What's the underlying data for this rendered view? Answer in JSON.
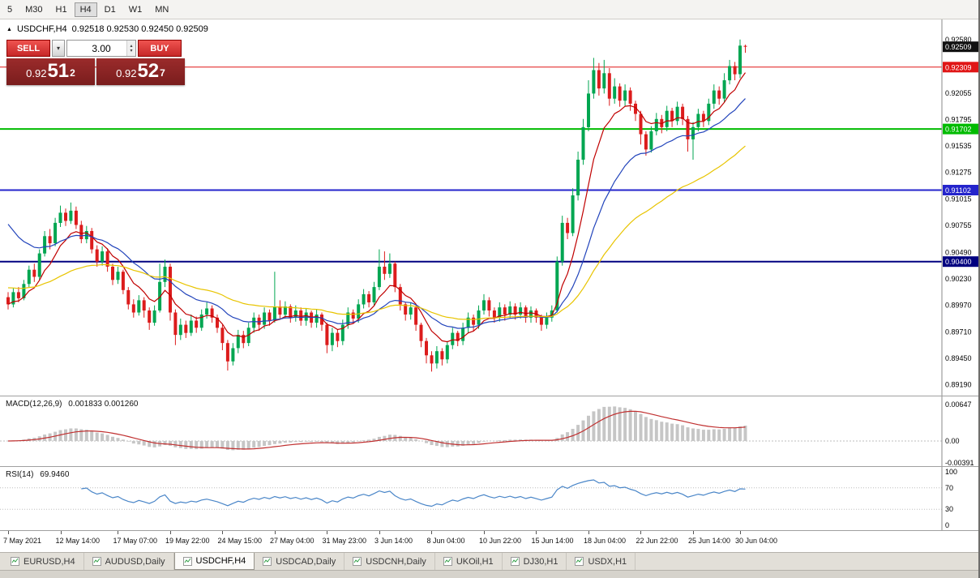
{
  "toolbar": {
    "timeframes": [
      {
        "label": "5",
        "active": false
      },
      {
        "label": "M30",
        "active": false
      },
      {
        "label": "H1",
        "active": false
      },
      {
        "label": "H4",
        "active": true
      },
      {
        "label": "D1",
        "active": false
      },
      {
        "label": "W1",
        "active": false
      },
      {
        "label": "MN",
        "active": false
      }
    ]
  },
  "chart_header": {
    "symbol_period": "USDCHF,H4",
    "ohlc": "0.92518 0.92530 0.92450 0.92509"
  },
  "trade_panel": {
    "sell_label": "SELL",
    "buy_label": "BUY",
    "volume": "3.00",
    "sell_price_big": "0.92",
    "sell_price_mid": "51",
    "sell_price_sup": "2",
    "buy_price_big": "0.92",
    "buy_price_mid": "52",
    "buy_price_sup": "7"
  },
  "colors": {
    "bull": "#00a651",
    "bear": "#dc1c1c",
    "macd_hist": "#c6c6c6",
    "macd_signal": "#c03030",
    "rsi": "#4a86c8"
  },
  "chart_data": {
    "type": "candlestick",
    "symbol": "USDCHF",
    "period": "H4",
    "price_axis": {
      "min": 0.891,
      "max": 0.9265,
      "ticks": [
        0.9258,
        0.92055,
        0.91795,
        0.91535,
        0.91275,
        0.91015,
        0.90755,
        0.9049,
        0.9023,
        0.8997,
        0.8971,
        0.8945,
        0.8919
      ]
    },
    "current_price_badge": {
      "price": 0.92509,
      "label": "0.92509",
      "bg": "#111111"
    },
    "hlines": [
      {
        "price": 0.92309,
        "badge": "0.92309",
        "color": "#e01616",
        "width": 1
      },
      {
        "price": 0.91702,
        "badge": "0.91702",
        "color": "#00bb00",
        "width": 2
      },
      {
        "price": 0.91102,
        "badge": "0.91102",
        "color": "#2424cc",
        "width": 2
      },
      {
        "price": 0.904,
        "badge": "0.90400",
        "color": "#000080",
        "width": 2
      }
    ],
    "moving_averages": [
      {
        "period": 8,
        "color": "#c00000",
        "seed": null
      },
      {
        "period": 20,
        "color": "#2244bb",
        "seed": 0.9085
      },
      {
        "period": 45,
        "color": "#e8c400",
        "seed": 0.9015
      }
    ],
    "macd": {
      "label": "MACD(12,26,9)",
      "values_label": "0.001833 0.001260",
      "fast": 12,
      "slow": 26,
      "signal": 9,
      "axis": [
        0.00647,
        0,
        -0.00391
      ]
    },
    "rsi": {
      "label": "RSI(14)",
      "value_label": "69.9460",
      "period": 14,
      "levels": [
        100,
        70,
        30,
        0
      ]
    },
    "time_labels": [
      {
        "i": 0,
        "label": "7 May 2021"
      },
      {
        "i": 10,
        "label": "12 May 14:00"
      },
      {
        "i": 21,
        "label": "17 May 07:00"
      },
      {
        "i": 31,
        "label": "19 May 22:00"
      },
      {
        "i": 41,
        "label": "24 May 15:00"
      },
      {
        "i": 51,
        "label": "27 May 04:00"
      },
      {
        "i": 61,
        "label": "31 May 23:00"
      },
      {
        "i": 71,
        "label": "3 Jun 14:00"
      },
      {
        "i": 81,
        "label": "8 Jun 04:00"
      },
      {
        "i": 91,
        "label": "10 Jun 22:00"
      },
      {
        "i": 101,
        "label": "15 Jun 14:00"
      },
      {
        "i": 111,
        "label": "18 Jun 04:00"
      },
      {
        "i": 121,
        "label": "22 Jun 22:00"
      },
      {
        "i": 131,
        "label": "25 Jun 14:00"
      },
      {
        "i": 140,
        "label": "30 Jun 04:00"
      }
    ],
    "candles": [
      [
        0.9005,
        0.901,
        0.8993,
        0.8998
      ],
      [
        0.8998,
        0.9014,
        0.8995,
        0.901
      ],
      [
        0.901,
        0.9015,
        0.9,
        0.9004
      ],
      [
        0.9004,
        0.9022,
        0.9002,
        0.9018
      ],
      [
        0.9018,
        0.9036,
        0.9015,
        0.9032
      ],
      [
        0.9032,
        0.9038,
        0.902,
        0.9025
      ],
      [
        0.9025,
        0.9052,
        0.9022,
        0.9048
      ],
      [
        0.9048,
        0.907,
        0.9045,
        0.9065
      ],
      [
        0.9065,
        0.9072,
        0.9052,
        0.9058
      ],
      [
        0.9058,
        0.9083,
        0.9055,
        0.9078
      ],
      [
        0.9078,
        0.9095,
        0.9074,
        0.9088
      ],
      [
        0.9088,
        0.9092,
        0.9075,
        0.908
      ],
      [
        0.908,
        0.9098,
        0.9077,
        0.909
      ],
      [
        0.909,
        0.9094,
        0.9072,
        0.9076
      ],
      [
        0.9076,
        0.908,
        0.9058,
        0.9062
      ],
      [
        0.9062,
        0.9075,
        0.9058,
        0.907
      ],
      [
        0.907,
        0.9073,
        0.9048,
        0.9052
      ],
      [
        0.9052,
        0.9056,
        0.9035,
        0.904
      ],
      [
        0.904,
        0.9055,
        0.9036,
        0.905
      ],
      [
        0.905,
        0.9053,
        0.903,
        0.9035
      ],
      [
        0.9035,
        0.9038,
        0.9017,
        0.9022
      ],
      [
        0.9022,
        0.9035,
        0.9018,
        0.903
      ],
      [
        0.903,
        0.9032,
        0.9008,
        0.9012
      ],
      [
        0.9012,
        0.9015,
        0.8993,
        0.8998
      ],
      [
        0.8998,
        0.9003,
        0.8985,
        0.899
      ],
      [
        0.899,
        0.9007,
        0.8987,
        0.9002
      ],
      [
        0.9002,
        0.9005,
        0.8985,
        0.8992
      ],
      [
        0.8992,
        0.8995,
        0.8973,
        0.898
      ],
      [
        0.898,
        0.8997,
        0.8977,
        0.8992
      ],
      [
        0.8992,
        0.9038,
        0.899,
        0.902
      ],
      [
        0.902,
        0.9042,
        0.9015,
        0.9035
      ],
      [
        0.9035,
        0.9038,
        0.8982,
        0.899
      ],
      [
        0.899,
        0.8993,
        0.8958,
        0.8968
      ],
      [
        0.8968,
        0.8984,
        0.8963,
        0.8978
      ],
      [
        0.8978,
        0.8982,
        0.8965,
        0.897
      ],
      [
        0.897,
        0.8988,
        0.8967,
        0.8982
      ],
      [
        0.8982,
        0.8986,
        0.897,
        0.8975
      ],
      [
        0.8975,
        0.8993,
        0.8972,
        0.8988
      ],
      [
        0.8988,
        0.9,
        0.8984,
        0.8994
      ],
      [
        0.8994,
        0.8997,
        0.898,
        0.8985
      ],
      [
        0.8985,
        0.8988,
        0.897,
        0.8975
      ],
      [
        0.8975,
        0.8978,
        0.8953,
        0.896
      ],
      [
        0.896,
        0.8963,
        0.8933,
        0.8942
      ],
      [
        0.8942,
        0.896,
        0.8938,
        0.8955
      ],
      [
        0.8955,
        0.8973,
        0.895,
        0.8968
      ],
      [
        0.8968,
        0.8972,
        0.8955,
        0.896
      ],
      [
        0.896,
        0.898,
        0.8957,
        0.8975
      ],
      [
        0.8975,
        0.899,
        0.897,
        0.8985
      ],
      [
        0.8985,
        0.8988,
        0.8972,
        0.8978
      ],
      [
        0.8978,
        0.8995,
        0.8974,
        0.899
      ],
      [
        0.899,
        0.8993,
        0.8977,
        0.8982
      ],
      [
        0.8982,
        0.903,
        0.898,
        0.8996
      ],
      [
        0.8996,
        0.9002,
        0.8983,
        0.8988
      ],
      [
        0.8988,
        0.9001,
        0.8984,
        0.8996
      ],
      [
        0.8996,
        0.8998,
        0.898,
        0.8985
      ],
      [
        0.8985,
        0.8997,
        0.8981,
        0.8992
      ],
      [
        0.8992,
        0.8995,
        0.8977,
        0.8982
      ],
      [
        0.8982,
        0.8994,
        0.8977,
        0.899
      ],
      [
        0.899,
        0.8992,
        0.8975,
        0.898
      ],
      [
        0.898,
        0.8993,
        0.8975,
        0.8988
      ],
      [
        0.8988,
        0.899,
        0.8972,
        0.8978
      ],
      [
        0.8978,
        0.898,
        0.895,
        0.8958
      ],
      [
        0.8958,
        0.8975,
        0.8952,
        0.897
      ],
      [
        0.897,
        0.8973,
        0.8956,
        0.8962
      ],
      [
        0.8962,
        0.8983,
        0.8958,
        0.8978
      ],
      [
        0.8978,
        0.8995,
        0.8974,
        0.899
      ],
      [
        0.899,
        0.8993,
        0.8979,
        0.8984
      ],
      [
        0.8984,
        0.9003,
        0.898,
        0.8998
      ],
      [
        0.8998,
        0.9013,
        0.8994,
        0.9008
      ],
      [
        0.9008,
        0.9011,
        0.8995,
        0.9
      ],
      [
        0.9,
        0.902,
        0.8997,
        0.9015
      ],
      [
        0.9015,
        0.9052,
        0.9012,
        0.9035
      ],
      [
        0.9035,
        0.905,
        0.9022,
        0.9028
      ],
      [
        0.9028,
        0.9048,
        0.9024,
        0.9038
      ],
      [
        0.9038,
        0.904,
        0.901,
        0.9015
      ],
      [
        0.9015,
        0.9018,
        0.8992,
        0.8998
      ],
      [
        0.8998,
        0.9,
        0.8982,
        0.8988
      ],
      [
        0.8988,
        0.9,
        0.8983,
        0.8995
      ],
      [
        0.8995,
        0.8997,
        0.8972,
        0.8978
      ],
      [
        0.8978,
        0.898,
        0.8956,
        0.8962
      ],
      [
        0.8962,
        0.8965,
        0.894,
        0.8948
      ],
      [
        0.8948,
        0.8952,
        0.8932,
        0.894
      ],
      [
        0.894,
        0.8957,
        0.8935,
        0.8952
      ],
      [
        0.8952,
        0.8955,
        0.8938,
        0.8944
      ],
      [
        0.8944,
        0.8962,
        0.894,
        0.8958
      ],
      [
        0.8958,
        0.8975,
        0.8954,
        0.897
      ],
      [
        0.897,
        0.8972,
        0.8957,
        0.8962
      ],
      [
        0.8962,
        0.898,
        0.8958,
        0.8975
      ],
      [
        0.8975,
        0.899,
        0.897,
        0.8985
      ],
      [
        0.8985,
        0.8988,
        0.8972,
        0.8978
      ],
      [
        0.8978,
        0.8997,
        0.8974,
        0.8992
      ],
      [
        0.8992,
        0.9008,
        0.8988,
        0.9002
      ],
      [
        0.9002,
        0.9005,
        0.8986,
        0.8992
      ],
      [
        0.8992,
        0.8995,
        0.898,
        0.8985
      ],
      [
        0.8985,
        0.9,
        0.8981,
        0.8995
      ],
      [
        0.8995,
        0.8998,
        0.8982,
        0.8988
      ],
      [
        0.8988,
        0.9001,
        0.8984,
        0.8996
      ],
      [
        0.8996,
        0.8999,
        0.8983,
        0.8988
      ],
      [
        0.8988,
        0.9,
        0.8984,
        0.8995
      ],
      [
        0.8995,
        0.8997,
        0.898,
        0.8985
      ],
      [
        0.8985,
        0.8996,
        0.898,
        0.8992
      ],
      [
        0.8992,
        0.8994,
        0.898,
        0.8985
      ],
      [
        0.8985,
        0.8988,
        0.8972,
        0.8978
      ],
      [
        0.8978,
        0.899,
        0.8974,
        0.8985
      ],
      [
        0.8985,
        0.8997,
        0.8981,
        0.8992
      ],
      [
        0.8992,
        0.9045,
        0.899,
        0.904
      ],
      [
        0.904,
        0.9085,
        0.9036,
        0.9078
      ],
      [
        0.9078,
        0.9083,
        0.9062,
        0.9068
      ],
      [
        0.9068,
        0.9112,
        0.9065,
        0.9105
      ],
      [
        0.9105,
        0.9148,
        0.91,
        0.914
      ],
      [
        0.914,
        0.918,
        0.9135,
        0.9172
      ],
      [
        0.9172,
        0.9218,
        0.9168,
        0.9205
      ],
      [
        0.9205,
        0.924,
        0.92,
        0.9228
      ],
      [
        0.9228,
        0.9235,
        0.9203,
        0.921
      ],
      [
        0.921,
        0.9238,
        0.9205,
        0.9225
      ],
      [
        0.9225,
        0.923,
        0.9193,
        0.92
      ],
      [
        0.92,
        0.922,
        0.9195,
        0.9212
      ],
      [
        0.9212,
        0.9215,
        0.9192,
        0.9198
      ],
      [
        0.9198,
        0.9214,
        0.9193,
        0.9208
      ],
      [
        0.9208,
        0.9211,
        0.9188,
        0.9195
      ],
      [
        0.9195,
        0.9198,
        0.9178,
        0.9185
      ],
      [
        0.9185,
        0.9188,
        0.9155,
        0.9165
      ],
      [
        0.9165,
        0.9168,
        0.9144,
        0.915
      ],
      [
        0.915,
        0.9173,
        0.9147,
        0.9168
      ],
      [
        0.9168,
        0.9186,
        0.9164,
        0.918
      ],
      [
        0.918,
        0.9184,
        0.9166,
        0.9172
      ],
      [
        0.9172,
        0.9193,
        0.9168,
        0.9188
      ],
      [
        0.9188,
        0.9191,
        0.9172,
        0.9178
      ],
      [
        0.9178,
        0.9197,
        0.9174,
        0.9192
      ],
      [
        0.9192,
        0.9195,
        0.9174,
        0.918
      ],
      [
        0.918,
        0.9183,
        0.9148,
        0.916
      ],
      [
        0.916,
        0.9177,
        0.914,
        0.9172
      ],
      [
        0.9172,
        0.919,
        0.9168,
        0.9185
      ],
      [
        0.9185,
        0.9188,
        0.9172,
        0.9178
      ],
      [
        0.9178,
        0.92,
        0.9174,
        0.9195
      ],
      [
        0.9195,
        0.9214,
        0.919,
        0.9208
      ],
      [
        0.9208,
        0.9212,
        0.9194,
        0.92
      ],
      [
        0.92,
        0.9225,
        0.9196,
        0.9218
      ],
      [
        0.9218,
        0.9238,
        0.9214,
        0.9232
      ],
      [
        0.9232,
        0.9236,
        0.9218,
        0.9224
      ],
      [
        0.9224,
        0.9258,
        0.922,
        0.9252
      ],
      [
        0.92518,
        0.9253,
        0.9245,
        0.92509
      ]
    ]
  },
  "tabs": [
    {
      "label": "EURUSD,H4",
      "active": false
    },
    {
      "label": "AUDUSD,Daily",
      "active": false
    },
    {
      "label": "USDCHF,H4",
      "active": true
    },
    {
      "label": "USDCAD,Daily",
      "active": false
    },
    {
      "label": "USDCNH,Daily",
      "active": false
    },
    {
      "label": "UKOil,H1",
      "active": false
    },
    {
      "label": "DJ30,H1",
      "active": false
    },
    {
      "label": "USDX,H1",
      "active": false
    }
  ]
}
